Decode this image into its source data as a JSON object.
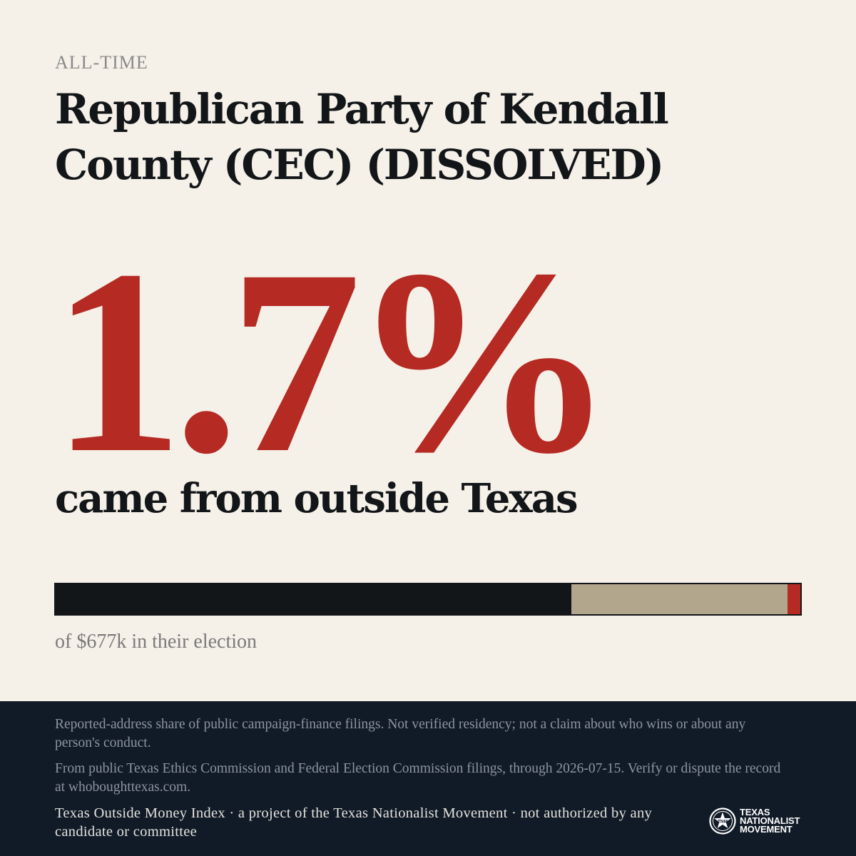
{
  "header": {
    "period": "ALL-TIME",
    "title": "Republican Party of Kendall County (CEC) (DISSOLVED)"
  },
  "stat": {
    "value": "1.7%",
    "caption": "came from outside Texas"
  },
  "bar": {
    "segments": [
      {
        "share": 69.3,
        "color": "#131619"
      },
      {
        "share": 29.0,
        "color": "#b2a68c"
      },
      {
        "share": 1.7,
        "color": "#b52a22"
      }
    ],
    "caption": "of $677k in their election"
  },
  "footer": {
    "disclaimer": "Reported-address share of public campaign-finance filings. Not verified residency; not a claim about who wins or about any person's conduct.",
    "source": "From public Texas Ethics Commission and Federal Election Commission filings, through 2026-07-15. Verify or dispute the record at whoboughttexas.com.",
    "credit": "Texas Outside Money Index · a project of the Texas Nationalist Movement · not authorized by any candidate or committee",
    "logo": {
      "icon": "star-seal-icon",
      "lines": [
        "TEXAS",
        "NATIONALIST",
        "MOVEMENT"
      ]
    }
  },
  "colors": {
    "background": "#f5f0e8",
    "accent": "#b52a22",
    "ink": "#131619",
    "footer": "#111b27"
  }
}
